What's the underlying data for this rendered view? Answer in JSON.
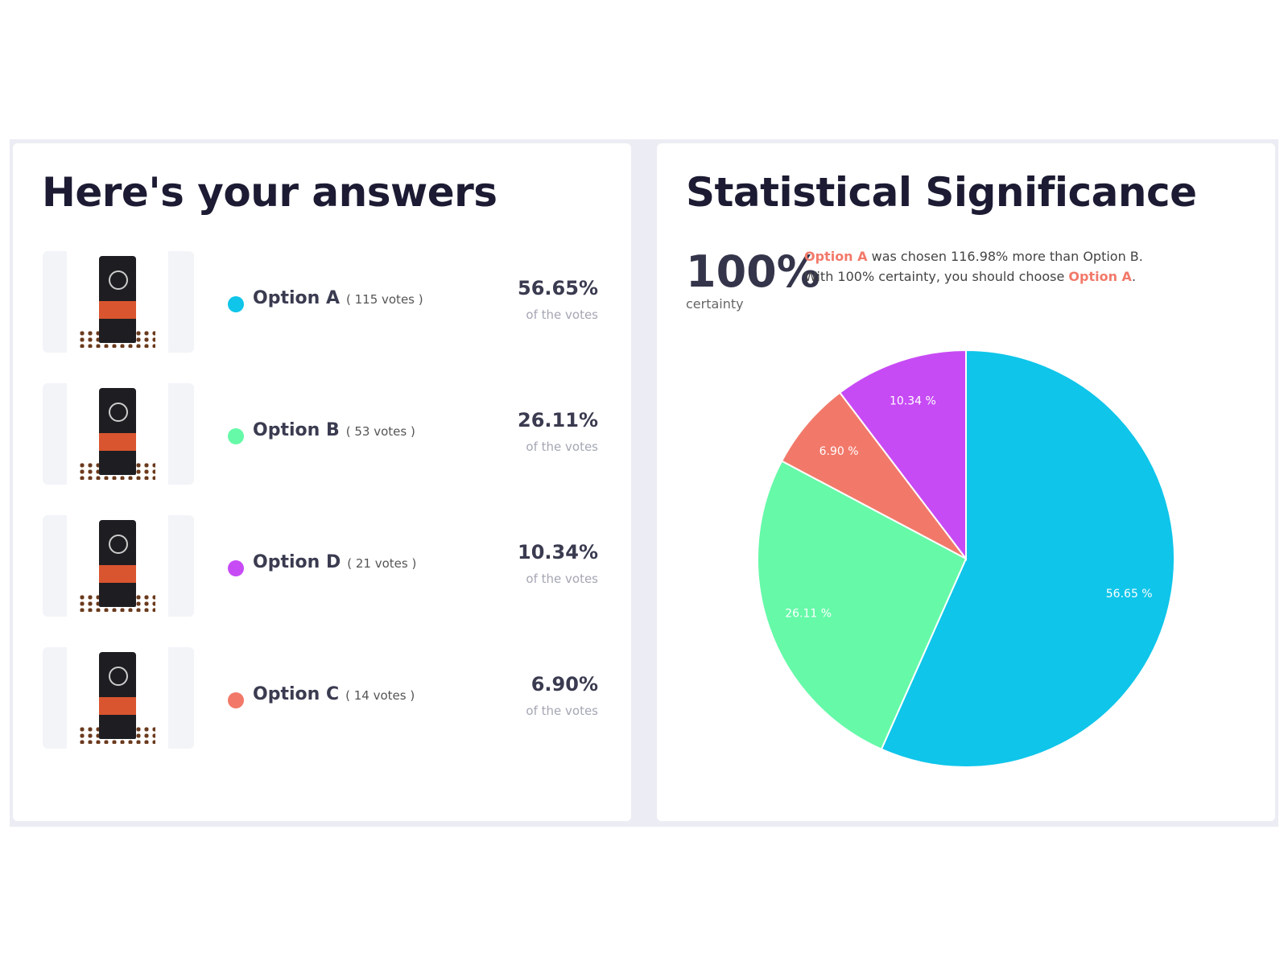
{
  "left": {
    "title": "Here's your answers",
    "of_label": "of the votes",
    "options": [
      {
        "name": "Option A",
        "votes": "( 115 votes )",
        "percent": "56.65%",
        "color": "#0fc5ea",
        "image": "coffee-bag-splash-cup"
      },
      {
        "name": "Option B",
        "votes": "( 53 votes )",
        "percent": "26.11%",
        "color": "#66f9a8",
        "image": "coffee-bag-beans"
      },
      {
        "name": "Option D",
        "votes": "( 21 votes )",
        "percent": "10.34%",
        "color": "#c74bf5",
        "image": "coffee-bag-powder-burst"
      },
      {
        "name": "Option C",
        "votes": "( 14 votes )",
        "percent": "6.90%",
        "color": "#f2796a",
        "image": "coffee-bag-splash"
      }
    ]
  },
  "right": {
    "title": "Statistical Significance",
    "certainty_value": "100%",
    "certainty_label": "certainty",
    "msg_winner": "Option A",
    "msg_line1_rest": " was chosen 116.98% more than Option B.",
    "msg_line2_prefix": "With 100% certainty, you should choose ",
    "msg_line2_winner": "Option A",
    "msg_line2_suffix": "."
  },
  "chart_data": {
    "type": "pie",
    "categories": [
      "Option A",
      "Option B",
      "Option C",
      "Option D"
    ],
    "values": [
      56.65,
      26.11,
      6.9,
      10.34
    ],
    "labels": [
      "56.65 %",
      "26.11 %",
      "6.90 %",
      "10.34 %"
    ],
    "colors": [
      "#0fc5ea",
      "#66f9a8",
      "#f2796a",
      "#c74bf5"
    ],
    "start": "top",
    "direction": "clockwise"
  }
}
